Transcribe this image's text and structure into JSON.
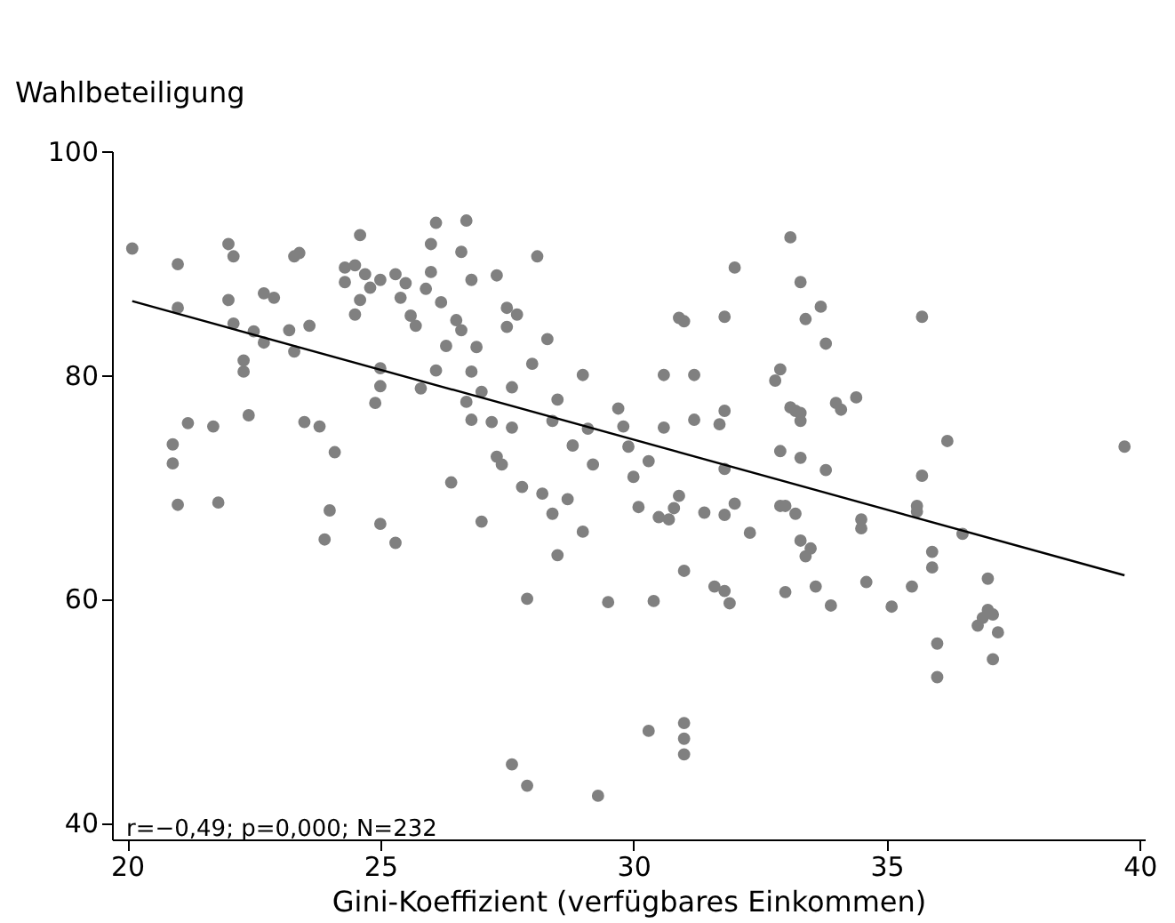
{
  "chart_data": {
    "type": "scatter",
    "xlabel": "Gini-Koeffizient (verfügbares Einkommen)",
    "ylabel": "Wahlbeteiligung",
    "xlim": [
      19.7,
      40.1
    ],
    "ylim": [
      38.5,
      100
    ],
    "xticks": [
      20,
      25,
      30,
      35,
      40
    ],
    "yticks": [
      40,
      60,
      80,
      100
    ],
    "grid": false,
    "annotations": [
      "r=−0,49; p=0,000; N=232"
    ],
    "series": [
      {
        "marker": "circle",
        "color": "#808080",
        "x": [
          20.1,
          20.9,
          20.9,
          21.0,
          21.0,
          21.0,
          21.2,
          21.7,
          21.8,
          22.0,
          22.1,
          22.0,
          22.1,
          22.3,
          22.3,
          22.4,
          22.5,
          22.7,
          22.7,
          22.9,
          23.2,
          23.3,
          23.4,
          23.3,
          23.6,
          23.5,
          23.8,
          23.9,
          24.0,
          24.1,
          24.3,
          24.3,
          24.6,
          24.5,
          24.7,
          24.6,
          24.5,
          24.8,
          25.0,
          25.0,
          24.9,
          25.0,
          25.0,
          25.3,
          25.5,
          25.4,
          25.3,
          25.6,
          25.7,
          25.8,
          25.9,
          26.0,
          26.0,
          26.1,
          26.2,
          26.3,
          26.1,
          26.4,
          26.6,
          26.7,
          26.8,
          26.5,
          26.6,
          26.9,
          26.8,
          26.8,
          26.7,
          27.0,
          27.2,
          27.0,
          27.3,
          27.4,
          27.5,
          27.3,
          27.5,
          27.7,
          27.6,
          27.6,
          27.8,
          27.9,
          27.6,
          27.9,
          28.1,
          28.0,
          28.3,
          28.4,
          28.5,
          28.2,
          28.4,
          28.5,
          28.7,
          28.8,
          29.0,
          29.1,
          29.2,
          29.0,
          29.3,
          29.5,
          29.7,
          29.8,
          29.9,
          30.0,
          30.1,
          30.3,
          30.3,
          30.4,
          30.6,
          30.6,
          30.5,
          30.7,
          30.9,
          31.0,
          30.9,
          30.8,
          31.0,
          31.0,
          31.0,
          31.2,
          31.2,
          31.0,
          31.4,
          31.8,
          31.7,
          31.8,
          31.8,
          31.6,
          31.8,
          31.9,
          32.0,
          32.0,
          31.8,
          32.3,
          32.8,
          32.9,
          32.9,
          32.9,
          33.1,
          33.3,
          33.4,
          33.2,
          33.1,
          33.3,
          33.3,
          33.3,
          33.0,
          33.2,
          33.3,
          33.5,
          33.4,
          33.0,
          33.6,
          33.8,
          33.7,
          33.8,
          34.0,
          34.1,
          34.4,
          34.5,
          34.5,
          33.9,
          34.6,
          35.1,
          35.5,
          35.6,
          35.6,
          35.7,
          35.7,
          35.9,
          35.9,
          36.0,
          36.0,
          36.2,
          36.5,
          36.8,
          36.9,
          37.0,
          37.1,
          37.0,
          37.1,
          37.2,
          39.7
        ],
        "values": [
          91.3,
          73.8,
          72.1,
          89.9,
          86.0,
          68.4,
          75.7,
          75.4,
          68.6,
          91.7,
          90.6,
          86.7,
          84.6,
          81.3,
          80.3,
          76.4,
          83.9,
          87.3,
          82.9,
          86.9,
          84.0,
          90.6,
          90.9,
          82.1,
          84.4,
          75.8,
          75.4,
          65.3,
          67.9,
          73.1,
          89.6,
          88.3,
          92.5,
          89.8,
          89.0,
          86.7,
          85.4,
          87.8,
          88.5,
          80.6,
          77.5,
          79.0,
          66.7,
          89.0,
          88.2,
          86.9,
          65.0,
          85.3,
          84.4,
          78.8,
          87.7,
          89.2,
          91.7,
          93.6,
          86.5,
          82.6,
          80.4,
          70.4,
          91.0,
          93.8,
          88.5,
          84.9,
          84.0,
          82.5,
          80.3,
          76.0,
          77.6,
          78.5,
          75.8,
          66.9,
          72.7,
          72.0,
          86.0,
          88.9,
          84.3,
          85.4,
          78.9,
          75.3,
          70.0,
          60.0,
          45.2,
          43.3,
          90.6,
          81.0,
          83.2,
          75.9,
          77.8,
          69.4,
          67.6,
          63.9,
          68.9,
          73.7,
          80.0,
          75.2,
          72.0,
          66.0,
          42.4,
          59.7,
          77.0,
          75.4,
          73.6,
          70.9,
          68.2,
          48.2,
          72.3,
          59.8,
          80.0,
          75.3,
          67.3,
          67.1,
          85.1,
          84.8,
          69.2,
          68.1,
          46.1,
          47.5,
          48.9,
          80.0,
          76.0,
          62.5,
          67.7,
          85.2,
          75.6,
          76.8,
          71.6,
          61.1,
          60.7,
          59.6,
          89.6,
          68.5,
          67.5,
          65.9,
          79.5,
          80.5,
          73.2,
          68.3,
          92.3,
          88.3,
          85.0,
          76.8,
          77.1,
          76.6,
          75.9,
          72.6,
          68.3,
          67.6,
          65.2,
          64.5,
          63.8,
          60.6,
          61.1,
          82.8,
          86.1,
          71.5,
          77.5,
          76.9,
          78.0,
          67.1,
          66.3,
          59.4,
          61.5,
          59.3,
          61.1,
          67.8,
          68.3,
          71.0,
          85.2,
          62.8,
          64.2,
          56.0,
          53.0,
          74.1,
          65.8,
          57.6,
          58.3,
          59.0,
          58.6,
          61.8,
          54.6,
          57.0,
          73.6
        ]
      },
      {
        "type": "line",
        "marker": "none",
        "color": "#000000",
        "x": [
          20.1,
          39.7
        ],
        "values": [
          86.6,
          62.1
        ]
      }
    ]
  }
}
